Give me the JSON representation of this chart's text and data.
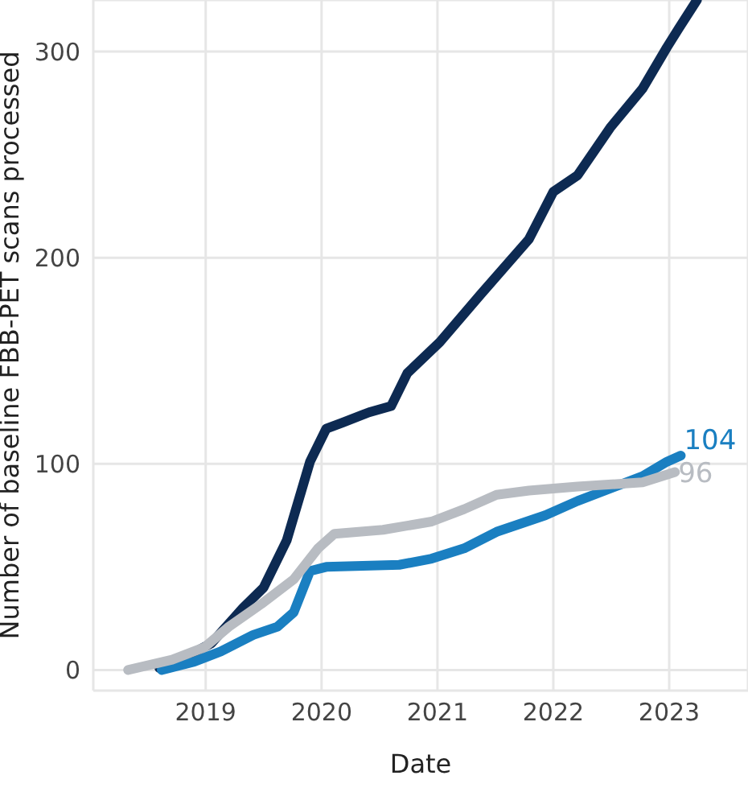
{
  "chart_data": {
    "type": "line",
    "xlabel": "Date",
    "ylabel": "Number of baseline FBB-PET scans processed",
    "xlim": [
      2018.03,
      2023.68
    ],
    "xticks": [
      2019,
      2020,
      2021,
      2022,
      2023
    ],
    "ylim": [
      -10,
      325
    ],
    "yticks": [
      0,
      100,
      200,
      300
    ],
    "grid": true,
    "legend": false,
    "marker": "none",
    "line_style": "solid",
    "series": [
      {
        "color": "#0d2a52",
        "x": [
          2018.6,
          2018.85,
          2019.05,
          2019.32,
          2019.5,
          2019.7,
          2019.9,
          2020.04,
          2020.18,
          2020.41,
          2020.6,
          2020.74,
          2021.02,
          2021.37,
          2021.79,
          2022.0,
          2022.21,
          2022.49,
          2022.77,
          2022.98,
          2023.08,
          2023.24
        ],
        "values": [
          1,
          7,
          13,
          30,
          40,
          63,
          101,
          117,
          120,
          125,
          128,
          144,
          159,
          182,
          209,
          232,
          240,
          263,
          282,
          302,
          311,
          325
        ]
      },
      {
        "color": "#1a7fc1",
        "x": [
          2018.62,
          2018.9,
          2019.13,
          2019.41,
          2019.62,
          2019.76,
          2019.9,
          2020.04,
          2020.67,
          2020.95,
          2021.23,
          2021.51,
          2021.93,
          2022.21,
          2022.49,
          2022.77,
          2022.98,
          2023.1
        ],
        "values": [
          0,
          4,
          9,
          17,
          21,
          28,
          48,
          50,
          51,
          54,
          59,
          67,
          75,
          82,
          88,
          94,
          101,
          104
        ]
      },
      {
        "color": "#b8bcc2",
        "x": [
          2018.33,
          2018.71,
          2018.99,
          2019.2,
          2019.48,
          2019.76,
          2019.97,
          2020.11,
          2020.53,
          2020.95,
          2021.23,
          2021.51,
          2021.79,
          2022.21,
          2022.77,
          2023.05
        ],
        "values": [
          0,
          5,
          11,
          21,
          32,
          44,
          59,
          66,
          68,
          72,
          78,
          85,
          87,
          89,
          91,
          96
        ]
      }
    ],
    "annotations": [
      {
        "text": "104",
        "x": 2023.1,
        "y": 104
      },
      {
        "text": "96",
        "x": 2023.05,
        "y": 96
      }
    ]
  }
}
